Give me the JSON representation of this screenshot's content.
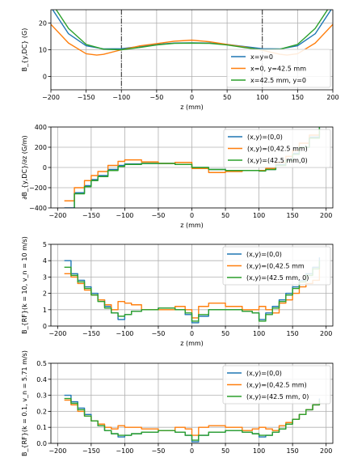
{
  "chart_data": [
    {
      "type": "line",
      "xlabel": "z (mm)",
      "ylabel": "B_{y,DC} (G)",
      "xlim": [
        -200,
        200
      ],
      "ylim": [
        -5,
        25
      ],
      "xticks": [
        -200,
        -150,
        -100,
        -50,
        0,
        50,
        100,
        150,
        200
      ],
      "yticks": [
        0,
        10,
        20
      ],
      "grid": true,
      "legend": "lower-right",
      "vlines": [
        -100,
        100
      ],
      "series": [
        {
          "name": "x=y=0",
          "color": "#1f77b4",
          "x": [
            -200,
            -175,
            -150,
            -125,
            -100,
            -75,
            -50,
            -25,
            0,
            25,
            50,
            75,
            100,
            125,
            150,
            175,
            200
          ],
          "y": [
            26,
            16,
            11.5,
            10.3,
            10.4,
            11.2,
            12.0,
            12.5,
            12.6,
            12.5,
            12.0,
            11.2,
            10.4,
            10.3,
            11.5,
            16,
            26
          ]
        },
        {
          "name": "x=0, y=42.5 mm",
          "color": "#ff7f0e",
          "x": [
            -200,
            -175,
            -150,
            -135,
            -125,
            -100,
            -75,
            -50,
            -25,
            0,
            25,
            50,
            75,
            100,
            125,
            135,
            150,
            175,
            200
          ],
          "y": [
            19.5,
            12.5,
            8.5,
            8.0,
            8.3,
            10.0,
            11.4,
            12.3,
            13.2,
            13.6,
            13.0,
            12.0,
            11.0,
            9.8,
            8.3,
            8.0,
            8.5,
            12.5,
            19.5
          ]
        },
        {
          "name": "x=42.5 mm, y=0",
          "color": "#2ca02c",
          "x": [
            -200,
            -175,
            -150,
            -125,
            -100,
            -75,
            -50,
            -25,
            0,
            25,
            50,
            75,
            100,
            125,
            150,
            175,
            200
          ],
          "y": [
            28,
            18,
            12,
            10.2,
            10.0,
            10.8,
            11.8,
            12.4,
            12.5,
            12.4,
            11.8,
            10.8,
            10.0,
            10.2,
            12,
            18,
            28
          ]
        }
      ]
    },
    {
      "type": "line",
      "xlabel": "z (mm)",
      "ylabel": "∂B_{y,DC}/∂z (G/m)",
      "xlim": [
        -210,
        210
      ],
      "ylim": [
        -400,
        400
      ],
      "xticks": [
        -200,
        -150,
        -100,
        -50,
        0,
        50,
        100,
        150,
        200
      ],
      "yticks": [
        -400,
        -200,
        0,
        200,
        400
      ],
      "grid": true,
      "legend": "upper-right",
      "series": [
        {
          "name": "(x,y)=(0,0)",
          "color": "#1f77b4",
          "stepped": true,
          "x": [
            -190,
            -175,
            -160,
            -150,
            -140,
            -125,
            -110,
            -100,
            -75,
            -50,
            -25,
            0,
            25,
            50,
            75,
            100,
            110,
            125,
            140,
            150,
            160,
            175,
            190
          ],
          "y": [
            -400,
            -250,
            -180,
            -120,
            -80,
            -20,
            20,
            35,
            40,
            40,
            30,
            0,
            -20,
            -30,
            -30,
            -30,
            -20,
            30,
            80,
            140,
            200,
            300,
            400
          ]
        },
        {
          "name": "(x,y)=(0,42.5 mm)",
          "color": "#ff7f0e",
          "stepped": true,
          "x": [
            -190,
            -175,
            -160,
            -150,
            -140,
            -125,
            -110,
            -100,
            -75,
            -50,
            -25,
            0,
            25,
            50,
            75,
            100,
            110,
            125,
            140,
            150,
            160,
            175,
            190
          ],
          "y": [
            -330,
            -200,
            -130,
            -80,
            -40,
            20,
            60,
            75,
            55,
            40,
            50,
            -10,
            -50,
            -40,
            -30,
            -30,
            -10,
            50,
            110,
            170,
            240,
            320,
            380
          ]
        },
        {
          "name": "(x,y)=(42.5 mm,0)",
          "color": "#2ca02c",
          "stepped": true,
          "x": [
            -190,
            -175,
            -160,
            -150,
            -140,
            -125,
            -110,
            -100,
            -75,
            -50,
            -25,
            0,
            25,
            50,
            75,
            100,
            110,
            125,
            140,
            150,
            160,
            175,
            190
          ],
          "y": [
            -410,
            -260,
            -190,
            -130,
            -90,
            -30,
            10,
            30,
            40,
            40,
            30,
            0,
            -20,
            -30,
            -30,
            -35,
            -20,
            20,
            70,
            130,
            200,
            290,
            400
          ]
        }
      ]
    },
    {
      "type": "line",
      "xlabel": "z (mm)",
      "ylabel": "B_{RF}(k = 10, v_n = 10 m/s)",
      "xlim": [
        -210,
        210
      ],
      "ylim": [
        0,
        5
      ],
      "xticks": [
        -200,
        -150,
        -100,
        -50,
        0,
        50,
        100,
        150,
        200
      ],
      "yticks": [
        0,
        1,
        2,
        3,
        4,
        5
      ],
      "grid": true,
      "legend": "upper-right",
      "series": [
        {
          "name": "(x,y)=(0,0)",
          "color": "#1f77b4",
          "stepped": true,
          "x": [
            -190,
            -180,
            -170,
            -160,
            -150,
            -140,
            -130,
            -120,
            -110,
            -100,
            -90,
            -75,
            -50,
            -25,
            -10,
            0,
            10,
            25,
            50,
            75,
            90,
            100,
            110,
            120,
            130,
            140,
            150,
            160,
            170,
            180,
            190
          ],
          "y": [
            4.0,
            3.2,
            2.8,
            2.4,
            2.0,
            1.6,
            1.2,
            0.8,
            0.4,
            0.7,
            0.9,
            1.0,
            1.1,
            1.0,
            0.7,
            0.2,
            0.6,
            1.0,
            1.0,
            0.9,
            0.8,
            0.4,
            0.8,
            1.2,
            1.6,
            2.0,
            2.4,
            2.8,
            3.2,
            3.6,
            4.2
          ]
        },
        {
          "name": "(x,y)=(0,42.5 mm",
          "color": "#ff7f0e",
          "stepped": true,
          "x": [
            -190,
            -180,
            -170,
            -160,
            -150,
            -140,
            -130,
            -120,
            -110,
            -100,
            -90,
            -75,
            -50,
            -25,
            -10,
            0,
            10,
            25,
            50,
            75,
            90,
            100,
            110,
            120,
            130,
            140,
            150,
            160,
            170,
            180,
            190
          ],
          "y": [
            3.2,
            3.0,
            2.6,
            2.2,
            1.9,
            1.6,
            1.3,
            1.0,
            1.5,
            1.4,
            1.3,
            1.0,
            1.0,
            1.2,
            1.0,
            0.5,
            1.2,
            1.4,
            1.2,
            1.0,
            1.0,
            1.2,
            1.0,
            0.8,
            1.4,
            1.6,
            2.0,
            2.4,
            2.6,
            2.8,
            3.6
          ]
        },
        {
          "name": "(x,y)=(42.5 mm, 0)",
          "color": "#2ca02c",
          "stepped": true,
          "x": [
            -190,
            -180,
            -170,
            -160,
            -150,
            -140,
            -130,
            -120,
            -110,
            -100,
            -90,
            -75,
            -50,
            -25,
            -10,
            0,
            10,
            25,
            50,
            75,
            90,
            100,
            110,
            120,
            130,
            140,
            150,
            160,
            170,
            180,
            190
          ],
          "y": [
            3.6,
            3.1,
            2.7,
            2.3,
            1.9,
            1.5,
            1.1,
            0.8,
            0.6,
            0.7,
            0.9,
            1.0,
            1.1,
            1.0,
            0.8,
            0.3,
            0.7,
            1.0,
            1.0,
            0.9,
            0.8,
            0.3,
            0.7,
            1.1,
            1.5,
            1.9,
            2.3,
            2.7,
            3.1,
            3.5,
            4.0
          ]
        }
      ]
    },
    {
      "type": "line",
      "xlabel": "",
      "ylabel": "B_{RF}(k = 0.1, v_n = 5.71 m/s)",
      "xlim": [
        -210,
        210
      ],
      "ylim": [
        0,
        0.5
      ],
      "xticks": [
        -200,
        -150,
        -100,
        -50,
        0,
        50,
        100,
        150,
        200
      ],
      "yticks": [
        0.0,
        0.1,
        0.2,
        0.3,
        0.4,
        0.5
      ],
      "grid": true,
      "legend": "upper-right",
      "series": [
        {
          "name": "(x,y)=(0,0)",
          "color": "#1f77b4",
          "stepped": true,
          "x": [
            -190,
            -180,
            -170,
            -160,
            -150,
            -140,
            -130,
            -120,
            -110,
            -100,
            -90,
            -75,
            -50,
            -25,
            -10,
            0,
            10,
            25,
            50,
            75,
            90,
            100,
            110,
            120,
            130,
            140,
            150,
            160,
            170,
            180,
            190
          ],
          "y": [
            0.3,
            0.26,
            0.22,
            0.18,
            0.14,
            0.11,
            0.08,
            0.06,
            0.04,
            0.05,
            0.06,
            0.07,
            0.08,
            0.07,
            0.05,
            0.01,
            0.05,
            0.07,
            0.08,
            0.07,
            0.06,
            0.04,
            0.05,
            0.07,
            0.09,
            0.12,
            0.15,
            0.18,
            0.21,
            0.24,
            0.28
          ]
        },
        {
          "name": "(x,y)=(0,42.5 mm)",
          "color": "#ff7f0e",
          "stepped": true,
          "x": [
            -190,
            -180,
            -170,
            -160,
            -150,
            -140,
            -130,
            -120,
            -110,
            -100,
            -90,
            -75,
            -50,
            -25,
            -10,
            0,
            10,
            25,
            50,
            75,
            90,
            100,
            110,
            120,
            130,
            140,
            150,
            160,
            170,
            180,
            190
          ],
          "y": [
            0.27,
            0.24,
            0.2,
            0.17,
            0.14,
            0.12,
            0.1,
            0.09,
            0.11,
            0.1,
            0.1,
            0.09,
            0.08,
            0.1,
            0.09,
            0.05,
            0.1,
            0.11,
            0.1,
            0.08,
            0.09,
            0.1,
            0.09,
            0.08,
            0.11,
            0.13,
            0.15,
            0.18,
            0.21,
            0.24,
            0.27
          ]
        },
        {
          "name": "(x,y)=(42.5 mm, 0)",
          "color": "#2ca02c",
          "stepped": true,
          "x": [
            -190,
            -180,
            -170,
            -160,
            -150,
            -140,
            -130,
            -120,
            -110,
            -100,
            -90,
            -75,
            -50,
            -25,
            -10,
            0,
            10,
            25,
            50,
            75,
            90,
            100,
            110,
            120,
            130,
            140,
            150,
            160,
            170,
            180,
            190
          ],
          "y": [
            0.28,
            0.25,
            0.21,
            0.17,
            0.14,
            0.11,
            0.08,
            0.06,
            0.05,
            0.05,
            0.06,
            0.07,
            0.08,
            0.07,
            0.05,
            0.02,
            0.05,
            0.07,
            0.08,
            0.07,
            0.06,
            0.05,
            0.05,
            0.07,
            0.09,
            0.12,
            0.15,
            0.18,
            0.21,
            0.24,
            0.27
          ]
        }
      ]
    }
  ]
}
